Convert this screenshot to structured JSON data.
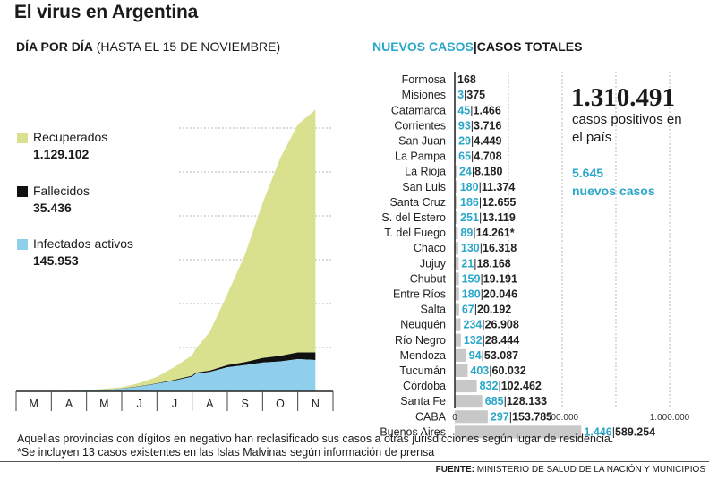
{
  "title": "El virus en Argentina",
  "left_header": {
    "bold": "DÍA POR DÍA",
    "rest": "(HASTA EL 15 DE NOVIEMBRE)"
  },
  "right_header": {
    "new": "NUEVOS CASOS",
    "sep": "|",
    "total": "CASOS TOTALES"
  },
  "summary": {
    "total": "1.310.491",
    "total_label": "casos positivos en el país",
    "new": "5.645",
    "new_label": "nuevos casos"
  },
  "legend": [
    {
      "label": "Recuperados",
      "value": "1.129.102",
      "color": "#d9e08e"
    },
    {
      "label": "Fallecidos",
      "value": "35.436",
      "color": "#111111"
    },
    {
      "label": "Infectados activos",
      "value": "145.953",
      "color": "#8fcfec"
    }
  ],
  "colors": {
    "cyan": "#2aa7c9",
    "bar": "#c8c8c8",
    "recovered": "#d9e08e",
    "deaths": "#111111",
    "active": "#8fcfec"
  },
  "chart_data": [
    {
      "type": "area",
      "title": "DÍA POR DÍA (HASTA EL 15 DE NOVIEMBRE)",
      "x_months": [
        "M",
        "A",
        "M",
        "J",
        "J",
        "A",
        "S",
        "O",
        "N"
      ],
      "x": [
        0,
        1,
        2,
        3,
        3.5,
        4,
        4.5,
        5,
        5.1,
        5.5,
        6,
        6.5,
        7,
        7.5,
        8,
        8.5
      ],
      "series": [
        {
          "name": "Infectados activos",
          "values": [
            0,
            500,
            4000,
            12000,
            22000,
            35000,
            50000,
            68000,
            82000,
            90000,
            112000,
            122000,
            134000,
            139000,
            150000,
            146000
          ]
        },
        {
          "name": "Fallecidos",
          "values": [
            0,
            100,
            400,
            900,
            1500,
            2200,
            3500,
            5000,
            5200,
            6500,
            10000,
            14000,
            21000,
            26000,
            31000,
            35436
          ]
        },
        {
          "name": "Recuperados",
          "values": [
            0,
            300,
            1500,
            6000,
            15000,
            30000,
            60000,
            95000,
            110000,
            180000,
            330000,
            500000,
            720000,
            920000,
            1060000,
            1129102
          ]
        }
      ],
      "ylim": [
        0,
        1350000
      ],
      "grid": true
    },
    {
      "type": "bar",
      "title": "NUEVOS CASOS | CASOS TOTALES",
      "xlim": [
        0,
        1000000
      ],
      "x_ticks": [
        "0",
        "500.000",
        "1.000.000"
      ],
      "rows": [
        {
          "province": "Formosa",
          "new": "",
          "total_label": "168",
          "total": 168
        },
        {
          "province": "Misiones",
          "new": "3",
          "total_label": "375",
          "total": 375
        },
        {
          "province": "Catamarca",
          "new": "45",
          "total_label": "1.466",
          "total": 1466
        },
        {
          "province": "Corrientes",
          "new": "93",
          "total_label": "3.716",
          "total": 3716
        },
        {
          "province": "San Juan",
          "new": "29",
          "total_label": "4.449",
          "total": 4449
        },
        {
          "province": "La Pampa",
          "new": "65",
          "total_label": "4.708",
          "total": 4708
        },
        {
          "province": "La Rioja",
          "new": "24",
          "total_label": "8.180",
          "total": 8180
        },
        {
          "province": "San Luis",
          "new": "180",
          "total_label": "11.374",
          "total": 11374
        },
        {
          "province": "Santa Cruz",
          "new": "186",
          "total_label": "12.655",
          "total": 12655
        },
        {
          "province": "S. del Estero",
          "new": "251",
          "total_label": "13.119",
          "total": 13119
        },
        {
          "province": "T. del Fuego",
          "new": "89",
          "total_label": "14.261*",
          "total": 14261
        },
        {
          "province": "Chaco",
          "new": "130",
          "total_label": "16.318",
          "total": 16318
        },
        {
          "province": "Jujuy",
          "new": "21",
          "total_label": "18.168",
          "total": 18168
        },
        {
          "province": "Chubut",
          "new": "159",
          "total_label": "19.191",
          "total": 19191
        },
        {
          "province": "Entre Ríos",
          "new": "180",
          "total_label": "20.046",
          "total": 20046
        },
        {
          "province": "Salta",
          "new": "67",
          "total_label": "20.192",
          "total": 20192
        },
        {
          "province": "Neuquén",
          "new": "234",
          "total_label": "26.908",
          "total": 26908
        },
        {
          "province": "Río Negro",
          "new": "132",
          "total_label": "28.444",
          "total": 28444
        },
        {
          "province": "Mendoza",
          "new": "94",
          "total_label": "53.087",
          "total": 53087
        },
        {
          "province": "Tucumán",
          "new": "403",
          "total_label": "60.032",
          "total": 60032
        },
        {
          "province": "Córdoba",
          "new": "832",
          "total_label": "102.462",
          "total": 102462
        },
        {
          "province": "Santa Fe",
          "new": "685",
          "total_label": "128.133",
          "total": 128133
        },
        {
          "province": "CABA",
          "new": "297",
          "total_label": "153.785",
          "total": 153785
        },
        {
          "province": "Buenos Aires",
          "new": "1.446",
          "total_label": "589.254",
          "total": 589254
        }
      ]
    }
  ],
  "notes": [
    "Aquellas provincias con dígitos en negativo han reclasificado sus casos a otras jurisdicciones según lugar de residencia.",
    "*Se incluyen 13 casos existentes en las Islas Malvinas según información de prensa"
  ],
  "source": {
    "bold": "FUENTE:",
    "rest": "MINISTERIO DE SALUD DE LA NACIÓN Y MUNICIPIOS"
  }
}
